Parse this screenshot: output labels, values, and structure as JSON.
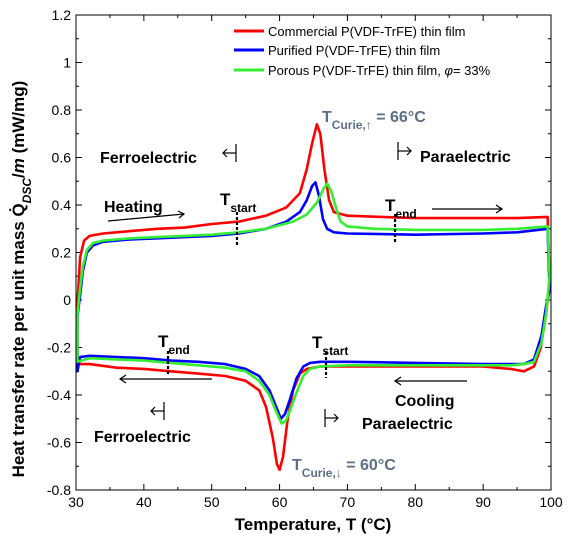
{
  "chart_data": {
    "type": "line",
    "title": "",
    "xlabel": "Temperature, T (°C)",
    "ylabel": "Heat transfer rate per unit mass Q̇DSC/m (mW/mg)",
    "ylabel_parts": {
      "prefix": "Heat transfer rate per unit mass ",
      "q": "Q̇",
      "sub": "DSC",
      "slash": "/",
      "m": "m",
      "unit": " (mW/mg)"
    },
    "xlim": [
      30,
      100
    ],
    "ylim": [
      -0.8,
      1.2
    ],
    "x_ticks": [
      "30",
      "40",
      "50",
      "60",
      "70",
      "80",
      "90",
      "100"
    ],
    "y_ticks": [
      "-0.8",
      "-0.6",
      "-0.4",
      "-0.2",
      "0",
      "0.2",
      "0.4",
      "0.6",
      "0.8",
      "1",
      "1.2"
    ],
    "grid": false,
    "legend_position": "top-right",
    "series": [
      {
        "name": "Commercial P(VDF-TrFE) thin film",
        "color": "#ff0000",
        "heating": [
          [
            30.2,
            -0.02
          ],
          [
            30.6,
            0.18
          ],
          [
            31.2,
            0.25
          ],
          [
            32,
            0.27
          ],
          [
            34,
            0.28
          ],
          [
            38,
            0.29
          ],
          [
            42,
            0.3
          ],
          [
            46,
            0.305
          ],
          [
            50,
            0.32
          ],
          [
            54,
            0.33
          ],
          [
            58,
            0.355
          ],
          [
            61,
            0.39
          ],
          [
            63,
            0.45
          ],
          [
            64,
            0.55
          ],
          [
            64.8,
            0.66
          ],
          [
            65.5,
            0.74
          ],
          [
            66,
            0.7
          ],
          [
            66.6,
            0.55
          ],
          [
            67.3,
            0.42
          ],
          [
            68,
            0.37
          ],
          [
            70,
            0.355
          ],
          [
            75,
            0.35
          ],
          [
            80,
            0.345
          ],
          [
            85,
            0.345
          ],
          [
            90,
            0.345
          ],
          [
            95,
            0.345
          ],
          [
            99.5,
            0.35
          ]
        ],
        "cooling": [
          [
            30.2,
            -0.27
          ],
          [
            32,
            -0.27
          ],
          [
            36,
            -0.285
          ],
          [
            40,
            -0.29
          ],
          [
            44,
            -0.3
          ],
          [
            48,
            -0.31
          ],
          [
            52,
            -0.32
          ],
          [
            55,
            -0.34
          ],
          [
            57,
            -0.38
          ],
          [
            58,
            -0.45
          ],
          [
            59,
            -0.58
          ],
          [
            59.6,
            -0.69
          ],
          [
            60,
            -0.715
          ],
          [
            60.5,
            -0.66
          ],
          [
            61.2,
            -0.5
          ],
          [
            62,
            -0.38
          ],
          [
            63,
            -0.31
          ],
          [
            64,
            -0.29
          ],
          [
            66,
            -0.28
          ],
          [
            70,
            -0.28
          ],
          [
            80,
            -0.28
          ],
          [
            90,
            -0.28
          ],
          [
            94,
            -0.29
          ],
          [
            96,
            -0.3
          ],
          [
            97.5,
            -0.28
          ],
          [
            98.5,
            -0.2
          ],
          [
            99.3,
            -0.05
          ],
          [
            99.8,
            0.07
          ]
        ]
      },
      {
        "name": "Purified P(VDF-TrFE) thin film",
        "color": "#0000ff",
        "heating": [
          [
            30.2,
            -0.07
          ],
          [
            30.6,
            0.02
          ],
          [
            31,
            0.12
          ],
          [
            31.6,
            0.2
          ],
          [
            32.5,
            0.23
          ],
          [
            34,
            0.245
          ],
          [
            38,
            0.255
          ],
          [
            42,
            0.26
          ],
          [
            46,
            0.265
          ],
          [
            50,
            0.27
          ],
          [
            54,
            0.28
          ],
          [
            58,
            0.3
          ],
          [
            61,
            0.33
          ],
          [
            63,
            0.37
          ],
          [
            64,
            0.42
          ],
          [
            64.8,
            0.48
          ],
          [
            65.3,
            0.495
          ],
          [
            65.8,
            0.44
          ],
          [
            66.4,
            0.34
          ],
          [
            67,
            0.3
          ],
          [
            68,
            0.285
          ],
          [
            70,
            0.28
          ],
          [
            80,
            0.275
          ],
          [
            90,
            0.28
          ],
          [
            95,
            0.285
          ],
          [
            99.5,
            0.3
          ]
        ],
        "cooling": [
          [
            30.2,
            -0.3
          ],
          [
            30.6,
            -0.24
          ],
          [
            32,
            -0.235
          ],
          [
            36,
            -0.24
          ],
          [
            40,
            -0.245
          ],
          [
            44,
            -0.255
          ],
          [
            48,
            -0.26
          ],
          [
            52,
            -0.27
          ],
          [
            55,
            -0.29
          ],
          [
            57,
            -0.32
          ],
          [
            58.5,
            -0.38
          ],
          [
            59.5,
            -0.45
          ],
          [
            60.2,
            -0.5
          ],
          [
            60.8,
            -0.48
          ],
          [
            61.5,
            -0.42
          ],
          [
            62.5,
            -0.33
          ],
          [
            63.5,
            -0.28
          ],
          [
            64.5,
            -0.265
          ],
          [
            66,
            -0.26
          ],
          [
            70,
            -0.26
          ],
          [
            80,
            -0.265
          ],
          [
            90,
            -0.27
          ],
          [
            94,
            -0.27
          ],
          [
            96,
            -0.27
          ],
          [
            97.5,
            -0.25
          ],
          [
            98.6,
            -0.15
          ],
          [
            99.3,
            -0.02
          ],
          [
            99.8,
            0.04
          ]
        ]
      },
      {
        "name": "Porous P(VDF-TrFE) thin film, φ= 33%",
        "name_parts": {
          "prefix": "Porous P(VDF-TrFE) thin film, ",
          "phi": "φ",
          "suffix": "= 33%"
        },
        "color": "#33ee33",
        "heating": [
          [
            30.2,
            -0.06
          ],
          [
            30.6,
            0.05
          ],
          [
            31,
            0.14
          ],
          [
            31.6,
            0.21
          ],
          [
            32.5,
            0.24
          ],
          [
            34,
            0.25
          ],
          [
            38,
            0.26
          ],
          [
            42,
            0.265
          ],
          [
            46,
            0.27
          ],
          [
            50,
            0.275
          ],
          [
            54,
            0.285
          ],
          [
            58,
            0.3
          ],
          [
            62,
            0.33
          ],
          [
            64,
            0.36
          ],
          [
            65.5,
            0.41
          ],
          [
            66.5,
            0.47
          ],
          [
            67,
            0.49
          ],
          [
            67.6,
            0.46
          ],
          [
            68.3,
            0.39
          ],
          [
            69,
            0.33
          ],
          [
            70,
            0.31
          ],
          [
            74,
            0.3
          ],
          [
            80,
            0.295
          ],
          [
            90,
            0.295
          ],
          [
            95,
            0.3
          ],
          [
            99.5,
            0.31
          ]
        ],
        "cooling": [
          [
            30.2,
            -0.26
          ],
          [
            32,
            -0.245
          ],
          [
            36,
            -0.25
          ],
          [
            40,
            -0.255
          ],
          [
            44,
            -0.265
          ],
          [
            48,
            -0.275
          ],
          [
            52,
            -0.285
          ],
          [
            55,
            -0.3
          ],
          [
            57,
            -0.34
          ],
          [
            58.5,
            -0.4
          ],
          [
            59.5,
            -0.47
          ],
          [
            60.3,
            -0.52
          ],
          [
            60.9,
            -0.51
          ],
          [
            61.6,
            -0.46
          ],
          [
            62.5,
            -0.39
          ],
          [
            63.5,
            -0.32
          ],
          [
            64.5,
            -0.29
          ],
          [
            66,
            -0.28
          ],
          [
            70,
            -0.275
          ],
          [
            80,
            -0.275
          ],
          [
            90,
            -0.275
          ],
          [
            94,
            -0.275
          ],
          [
            96,
            -0.27
          ],
          [
            97.5,
            -0.26
          ],
          [
            98.6,
            -0.18
          ],
          [
            99.3,
            -0.05
          ],
          [
            99.8,
            0.1
          ]
        ]
      }
    ],
    "annotations": {
      "curie_up": {
        "text": "T",
        "sub": "Curie,↑",
        "suffix": " = 66°C",
        "x": 65.5,
        "y": 0.67
      },
      "curie_down": {
        "text": "T",
        "sub": "Curie,↓",
        "suffix": " = 60°C",
        "x": 61.5,
        "y": -0.77
      },
      "tstart_heat": {
        "text": "T",
        "sub": "start",
        "x": 54,
        "y": 0.36
      },
      "tend_heat": {
        "text": "T",
        "sub": "end",
        "x": 77,
        "y": 0.36
      },
      "tend_cool": {
        "text": "T",
        "sub": "end",
        "x": 43.5,
        "y": -0.17
      },
      "tstart_cool": {
        "text": "T",
        "sub": "start",
        "x": 77,
        "y": -0.17
      },
      "ferro_heat": "Ferroelectric",
      "para_heat": "Paraelectric",
      "heating": "Heating",
      "cooling": "Cooling",
      "ferro_cool": "Ferroelectric",
      "para_cool": "Paraelectric"
    }
  }
}
